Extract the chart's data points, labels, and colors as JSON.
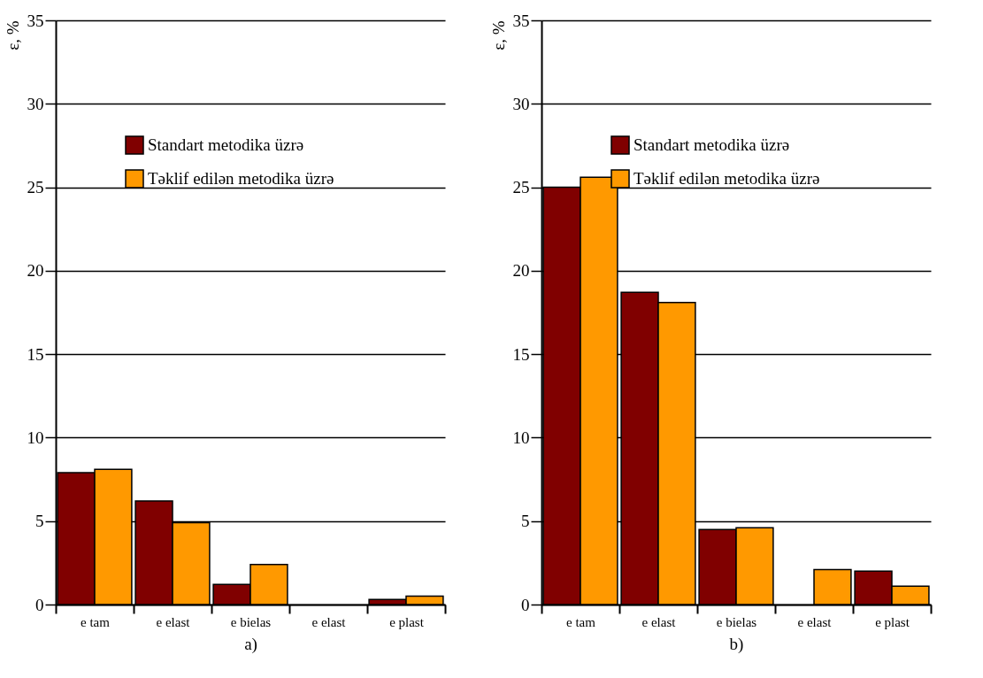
{
  "chart_data": [
    {
      "type": "bar",
      "xlabel": "a)",
      "ylabel": "ε, %",
      "categories": [
        "e tam",
        "e elast",
        "e bielas",
        "e elast",
        "e plast"
      ],
      "series": [
        {
          "name": "Standart metodika üzrə",
          "color": "#800000",
          "values": [
            7.9,
            6.2,
            1.2,
            0,
            0.3
          ]
        },
        {
          "name": "Təklif edilən metodika üzrə",
          "color": "#ff9900",
          "values": [
            8.1,
            4.9,
            2.4,
            0,
            0.5
          ]
        }
      ],
      "ylim": [
        0,
        35
      ],
      "yticks": [
        0,
        5,
        10,
        15,
        20,
        25,
        30,
        35
      ],
      "grid": "y",
      "legend": "top"
    },
    {
      "type": "bar",
      "xlabel": "b)",
      "ylabel": "ε, %",
      "categories": [
        "e tam",
        "e elast",
        "e bielas",
        "e elast",
        "e plast"
      ],
      "series": [
        {
          "name": "Standart metodika üzrə",
          "color": "#800000",
          "values": [
            25.0,
            18.7,
            4.5,
            0,
            2.0
          ]
        },
        {
          "name": "Təklif edilən metodika üzrə",
          "color": "#ff9900",
          "values": [
            25.6,
            18.1,
            4.6,
            2.1,
            1.1
          ]
        }
      ],
      "ylim": [
        0,
        35
      ],
      "yticks": [
        0,
        5,
        10,
        15,
        20,
        25,
        30,
        35
      ],
      "grid": "y",
      "legend": "top"
    }
  ]
}
